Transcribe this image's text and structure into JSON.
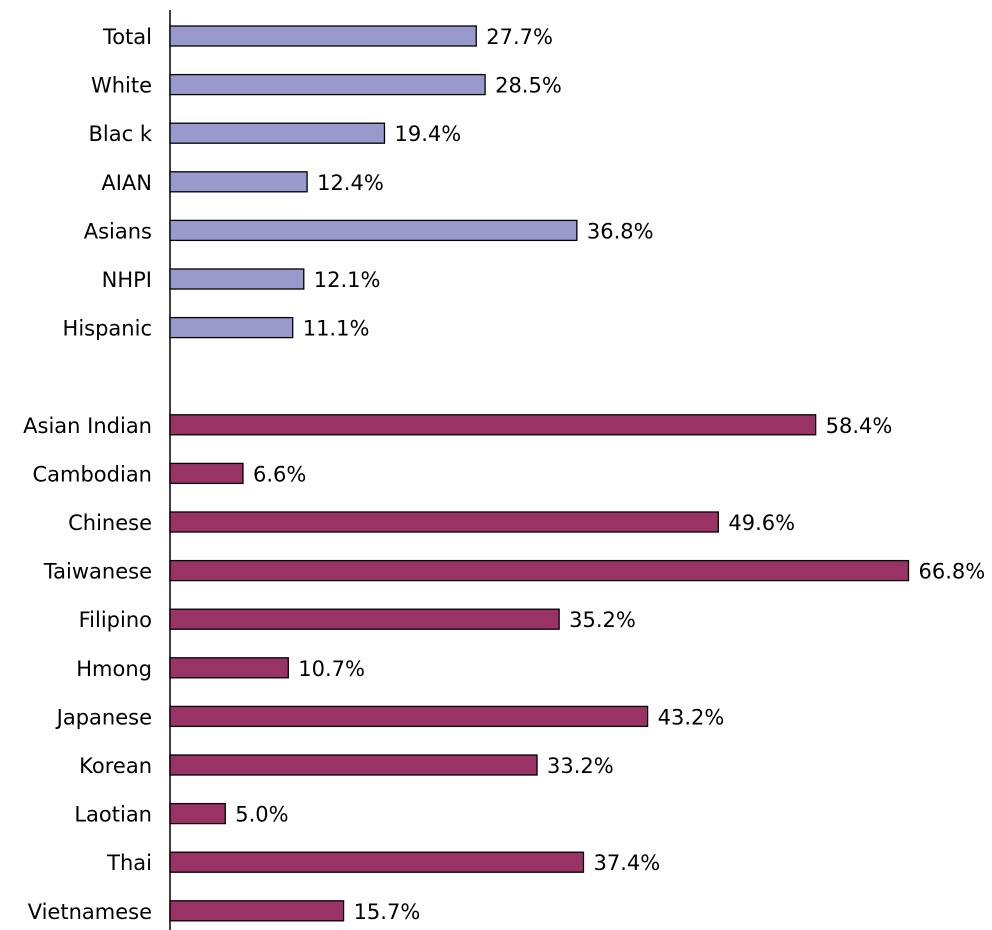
{
  "chart_data": {
    "type": "hbar",
    "categories": [
      "Total",
      "White",
      "Blac k",
      "AIAN",
      "Asians",
      "NHPI",
      "Hispanic",
      null,
      "Asian Indian",
      "Cambodian",
      "Chinese",
      "Taiwanese",
      "Filipino",
      "Hmong",
      "Japanese",
      "Korean",
      "Laotian",
      "Thai",
      "Vietnamese"
    ],
    "values": [
      27.7,
      28.5,
      19.4,
      12.4,
      36.8,
      12.1,
      11.1,
      null,
      58.4,
      6.6,
      49.6,
      66.8,
      35.2,
      10.7,
      43.2,
      33.2,
      5.0,
      37.4,
      15.7
    ],
    "value_labels": [
      "27.7%",
      "28.5%",
      "19.4%",
      "12.4%",
      "36.8%",
      "12.1%",
      "11.1%",
      null,
      "58.4%",
      "6.6%",
      "49.6%",
      "66.8%",
      "35.2%",
      "10.7%",
      "43.2%",
      "33.2%",
      "5.0%",
      "37.4%",
      "15.7%"
    ],
    "colors": [
      "#9999cc",
      "#9999cc",
      "#9999cc",
      "#9999cc",
      "#9999cc",
      "#9999cc",
      "#9999cc",
      null,
      "#993366",
      "#993366",
      "#993366",
      "#993366",
      "#993366",
      "#993366",
      "#993366",
      "#993366",
      "#993366",
      "#993366",
      "#993366"
    ],
    "xlim": [
      0,
      72
    ]
  }
}
